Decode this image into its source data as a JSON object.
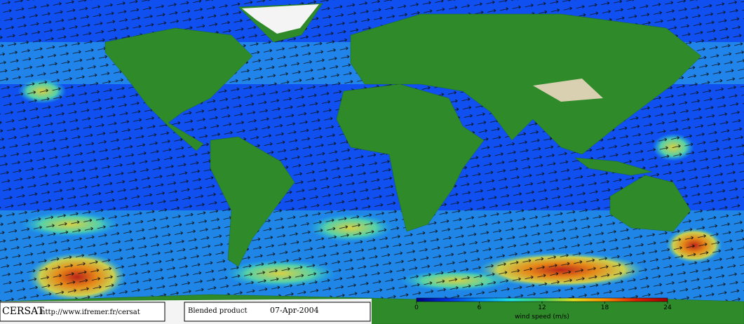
{
  "labels": {
    "org": "CERSAT",
    "url": "http://www.ifremer.fr/cersat",
    "product": "Blended product",
    "date": "07-Apr-2004"
  },
  "colorbar": {
    "title": "wind speed (m/s)",
    "lim": [
      0,
      24
    ],
    "ticks": [
      0,
      6,
      12,
      18,
      24
    ],
    "colors": [
      "#000080",
      "#0030e0",
      "#0090ff",
      "#20e0e0",
      "#40d060",
      "#e0e020",
      "#ff9000",
      "#e02000",
      "#a00000"
    ]
  }
}
